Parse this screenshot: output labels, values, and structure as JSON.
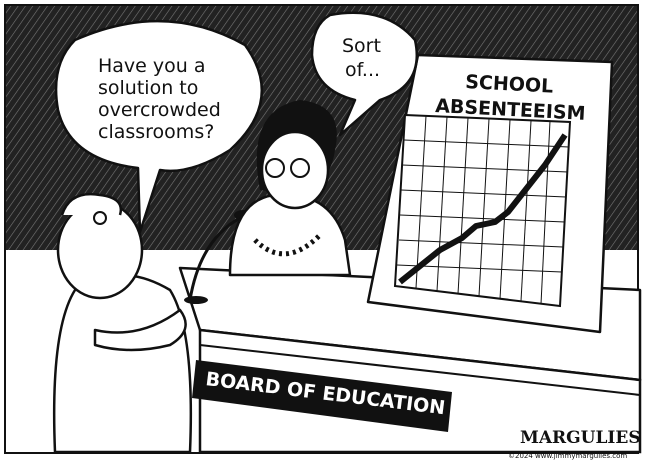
{
  "bubble_left": {
    "lines": [
      "Have you a",
      "solution to",
      "overcrowded",
      "classrooms?"
    ]
  },
  "bubble_right": {
    "lines": [
      "Sort",
      "of..."
    ]
  },
  "sign": {
    "lines": [
      "SCHOOL",
      "ABSENTEEISM"
    ]
  },
  "nameplate": "BOARD OF EDUCATION",
  "signature": {
    "name": "MARGULIES",
    "credit": "©2024 www.jimmymargulies.com"
  }
}
